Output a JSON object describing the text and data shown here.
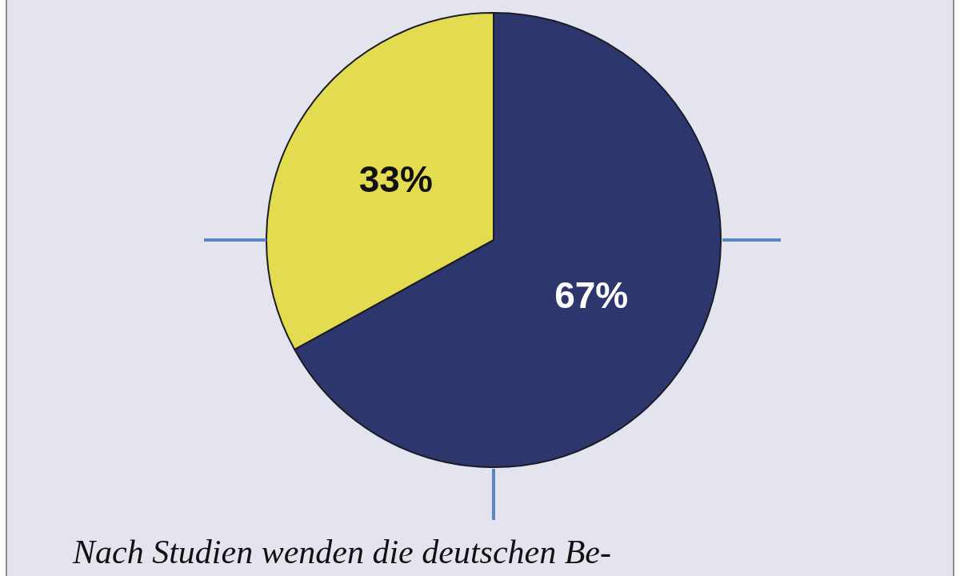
{
  "chart_data": {
    "type": "pie",
    "categories": [
      null,
      null
    ],
    "values": [
      67,
      33
    ],
    "colors": [
      "#2e366e",
      "#e4dc50"
    ],
    "value_labels": [
      "67%",
      "33%"
    ],
    "annotations": [
      "Nach Studien wenden die deutschen Be-"
    ]
  }
}
